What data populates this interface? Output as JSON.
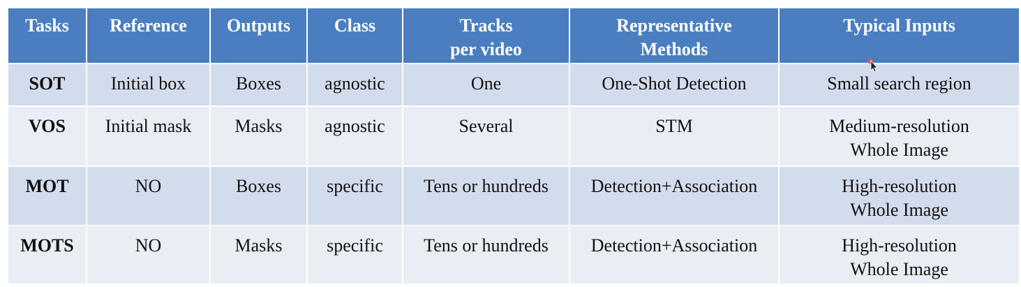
{
  "table": {
    "headers": [
      [
        "Tasks"
      ],
      [
        "Reference"
      ],
      [
        "Outputs"
      ],
      [
        "Class"
      ],
      [
        "Tracks",
        "per video"
      ],
      [
        "Representative",
        "Methods"
      ],
      [
        "Typical Inputs"
      ]
    ],
    "rows": [
      {
        "task": "SOT",
        "reference": "Initial box",
        "outputs": "Boxes",
        "class": "agnostic",
        "tracks": "One",
        "methods": "One-Shot Detection",
        "inputs": [
          "Small search region"
        ]
      },
      {
        "task": "VOS",
        "reference": "Initial mask",
        "outputs": "Masks",
        "class": "agnostic",
        "tracks": "Several",
        "methods": "STM",
        "inputs": [
          "Medium-resolution",
          "Whole Image"
        ]
      },
      {
        "task": "MOT",
        "reference": "NO",
        "outputs": "Boxes",
        "class": "specific",
        "tracks": "Tens or hundreds",
        "methods": "Detection+Association",
        "inputs": [
          "High-resolution",
          "Whole Image"
        ]
      },
      {
        "task": "MOTS",
        "reference": "NO",
        "outputs": "Masks",
        "class": "specific",
        "tracks": "Tens or hundreds",
        "methods": "Detection+Association",
        "inputs": [
          "High-resolution",
          "Whole Image"
        ]
      }
    ]
  },
  "colors": {
    "header_bg": "#4a7ec0",
    "row_odd_bg": "#d3dcec",
    "row_even_bg": "#e9edf4",
    "cursor_dot": "#e05a5a"
  },
  "icons": {
    "cursor": "mouse-pointer-icon"
  }
}
